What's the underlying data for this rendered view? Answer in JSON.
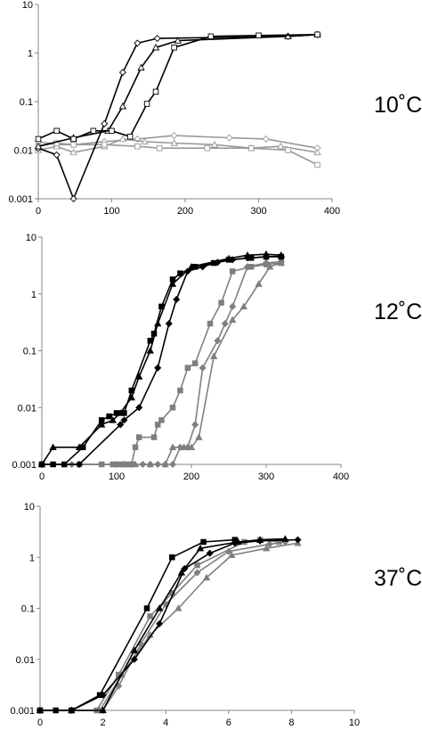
{
  "chart_data": [
    {
      "type": "line",
      "temperature_label": "10˚C",
      "yscale": "log",
      "ylim": [
        0.001,
        10
      ],
      "xlim": [
        0,
        400
      ],
      "yticks": [
        "10",
        "1",
        "0.1",
        "0.01",
        "0.001"
      ],
      "xticks": [
        "0",
        "100",
        "200",
        "300",
        "400"
      ],
      "grid": false,
      "series": [
        {
          "color": "#000000",
          "marker": "diamond-open",
          "x": [
            0,
            25,
            48,
            90,
            115,
            135,
            162,
            340,
            380
          ],
          "y": [
            0.011,
            0.008,
            0.001,
            0.035,
            0.4,
            1.6,
            2.0,
            2.2,
            2.4
          ]
        },
        {
          "color": "#000000",
          "marker": "triangle-open",
          "x": [
            0,
            48,
            95,
            115,
            140,
            160,
            190,
            340,
            380
          ],
          "y": [
            0.012,
            0.018,
            0.025,
            0.08,
            0.5,
            1.3,
            1.8,
            2.2,
            2.4
          ]
        },
        {
          "color": "#000000",
          "marker": "square-open",
          "x": [
            0,
            25,
            48,
            75,
            100,
            125,
            148,
            160,
            185,
            235,
            300,
            380
          ],
          "y": [
            0.017,
            0.025,
            0.017,
            0.025,
            0.025,
            0.019,
            0.09,
            0.16,
            1.3,
            2.2,
            2.3,
            2.4
          ]
        },
        {
          "color": "#999999",
          "marker": "diamond-open",
          "x": [
            0,
            25,
            48,
            90,
            135,
            185,
            260,
            310,
            380
          ],
          "y": [
            0.015,
            0.013,
            0.013,
            0.015,
            0.017,
            0.02,
            0.018,
            0.017,
            0.011
          ]
        },
        {
          "color": "#999999",
          "marker": "triangle-open",
          "x": [
            0,
            25,
            48,
            90,
            115,
            145,
            185,
            240,
            290,
            330,
            380
          ],
          "y": [
            0.01,
            0.012,
            0.009,
            0.012,
            0.017,
            0.015,
            0.014,
            0.013,
            0.011,
            0.012,
            0.009
          ]
        },
        {
          "color": "#999999",
          "marker": "square-open",
          "x": [
            0,
            25,
            48,
            90,
            135,
            165,
            230,
            290,
            340,
            380
          ],
          "y": [
            0.012,
            0.014,
            0.013,
            0.013,
            0.012,
            0.011,
            0.011,
            0.011,
            0.01,
            0.005
          ]
        }
      ]
    },
    {
      "type": "line",
      "temperature_label": "12˚C",
      "yscale": "log",
      "ylim": [
        0.001,
        10
      ],
      "xlim": [
        0,
        400
      ],
      "yticks": [
        "10",
        "1",
        "0.1",
        "0.01",
        "0.001"
      ],
      "xticks": [
        "0",
        "100",
        "200",
        "300",
        "400"
      ],
      "grid": false,
      "series": [
        {
          "color": "#000000",
          "marker": "square",
          "x": [
            0,
            15,
            30,
            55,
            80,
            90,
            100,
            110,
            120,
            145,
            150,
            160,
            175,
            185,
            205,
            230,
            250,
            280,
            300,
            320
          ],
          "y": [
            0.001,
            0.001,
            0.001,
            0.002,
            0.006,
            0.007,
            0.008,
            0.008,
            0.02,
            0.15,
            0.2,
            0.6,
            1.8,
            2.3,
            3.0,
            3.5,
            4.0,
            4.3,
            4.5,
            4.5
          ]
        },
        {
          "color": "#000000",
          "marker": "diamond",
          "x": [
            0,
            50,
            105,
            110,
            130,
            155,
            170,
            180,
            195,
            215,
            235,
            255,
            275,
            300,
            320
          ],
          "y": [
            0.001,
            0.001,
            0.005,
            0.006,
            0.01,
            0.05,
            0.3,
            0.8,
            2.5,
            3.0,
            3.6,
            4.0,
            4.3,
            4.5,
            4.6
          ]
        },
        {
          "color": "#000000",
          "marker": "triangle",
          "x": [
            0,
            15,
            50,
            80,
            95,
            105,
            120,
            130,
            145,
            155,
            175,
            200,
            250,
            275,
            300,
            320
          ],
          "y": [
            0.001,
            0.002,
            0.002,
            0.005,
            0.006,
            0.008,
            0.015,
            0.035,
            0.1,
            0.3,
            1.5,
            3.0,
            4.2,
            4.8,
            5.0,
            4.8
          ]
        },
        {
          "color": "#7f7f7f",
          "marker": "square",
          "x": [
            0,
            50,
            80,
            95,
            105,
            110,
            115,
            120,
            125,
            130,
            150,
            155,
            160,
            175,
            185,
            195,
            205,
            225,
            240,
            255,
            280,
            300,
            320
          ],
          "y": [
            0.001,
            0.001,
            0.001,
            0.001,
            0.001,
            0.001,
            0.001,
            0.001,
            0.002,
            0.003,
            0.003,
            0.005,
            0.006,
            0.01,
            0.02,
            0.05,
            0.06,
            0.3,
            0.7,
            2.5,
            3.0,
            3.3,
            3.5
          ]
        },
        {
          "color": "#7f7f7f",
          "marker": "diamond",
          "x": [
            0,
            40,
            100,
            120,
            135,
            145,
            155,
            165,
            175,
            185,
            195,
            205,
            215,
            235,
            245,
            255,
            275,
            300,
            320
          ],
          "y": [
            0.001,
            0.001,
            0.001,
            0.001,
            0.001,
            0.001,
            0.001,
            0.001,
            0.001,
            0.002,
            0.002,
            0.005,
            0.05,
            0.15,
            0.3,
            0.6,
            3.0,
            3.5,
            3.7
          ]
        },
        {
          "color": "#7f7f7f",
          "marker": "triangle",
          "x": [
            0,
            110,
            125,
            145,
            165,
            175,
            190,
            200,
            210,
            230,
            255,
            270,
            290,
            305,
            320
          ],
          "y": [
            0.001,
            0.001,
            0.001,
            0.001,
            0.001,
            0.002,
            0.002,
            0.002,
            0.003,
            0.08,
            0.35,
            0.6,
            1.5,
            3.0,
            3.5
          ]
        }
      ]
    },
    {
      "type": "line",
      "temperature_label": "37˚C",
      "yscale": "log",
      "ylim": [
        0.001,
        10
      ],
      "xlim": [
        0,
        10
      ],
      "yticks": [
        "10",
        "1",
        "0.1",
        "0.01",
        "0.001"
      ],
      "xticks": [
        "0",
        "2",
        "4",
        "6",
        "8",
        "10"
      ],
      "grid": false,
      "series": [
        {
          "color": "#000000",
          "marker": "square",
          "x": [
            0,
            0.5,
            1,
            1.9,
            3.4,
            4.2,
            5.2,
            6.2
          ],
          "y": [
            0.001,
            0.001,
            0.001,
            0.002,
            0.1,
            1.0,
            2.0,
            2.2
          ]
        },
        {
          "color": "#000000",
          "marker": "diamond",
          "x": [
            0,
            1,
            2,
            3,
            3.8,
            4.6,
            5.4,
            6.2,
            7.0,
            8.2
          ],
          "y": [
            0.001,
            0.001,
            0.002,
            0.01,
            0.05,
            0.6,
            1.2,
            1.9,
            2.1,
            2.2
          ]
        },
        {
          "color": "#000000",
          "marker": "triangle",
          "x": [
            0,
            1,
            2,
            3,
            3.8,
            4.5,
            5.1,
            6.3,
            7.0,
            7.8
          ],
          "y": [
            0.001,
            0.001,
            0.001,
            0.015,
            0.1,
            0.5,
            1.5,
            2.0,
            2.2,
            2.3
          ]
        },
        {
          "color": "#7f7f7f",
          "marker": "square",
          "x": [
            0,
            1,
            1.8,
            2.5,
            3.5,
            4.2,
            5.0,
            6.5,
            7.0,
            7.6
          ],
          "y": [
            0.001,
            0.001,
            0.001,
            0.005,
            0.07,
            0.2,
            0.7,
            2.0,
            2.2,
            2.0
          ]
        },
        {
          "color": "#7f7f7f",
          "marker": "diamond",
          "x": [
            0,
            1,
            2,
            2.5,
            3.2,
            4.0,
            5.0,
            6.0,
            7.3,
            7.8
          ],
          "y": [
            0.001,
            0.001,
            0.001,
            0.003,
            0.02,
            0.12,
            0.5,
            1.3,
            1.8,
            2.0
          ]
        },
        {
          "color": "#7f7f7f",
          "marker": "triangle",
          "x": [
            0,
            1,
            1.9,
            2.6,
            3.5,
            4.4,
            5.3,
            6.1,
            7.2,
            8.2
          ],
          "y": [
            0.001,
            0.001,
            0.001,
            0.005,
            0.03,
            0.1,
            0.4,
            1.1,
            1.5,
            1.9
          ]
        }
      ]
    }
  ]
}
